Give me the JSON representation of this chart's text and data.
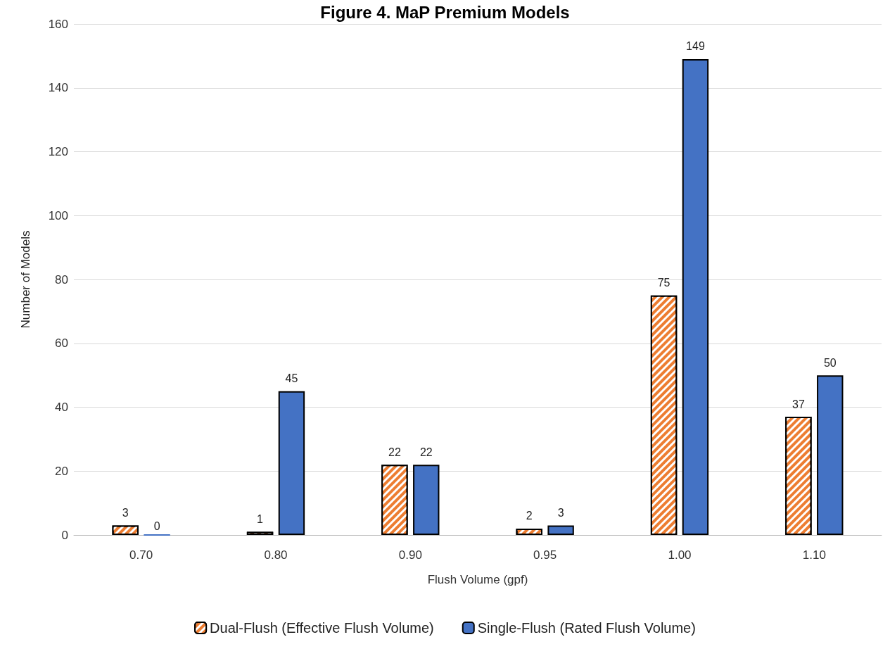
{
  "chart_data": {
    "type": "bar",
    "title": "Figure 4. MaP Premium Models",
    "xlabel": "Flush Volume (gpf)",
    "ylabel": "Number of Models",
    "categories": [
      "0.70",
      "0.80",
      "0.90",
      "0.95",
      "1.00",
      "1.10"
    ],
    "series": [
      {
        "name": "Dual-Flush (Effective Flush Volume)",
        "color": "#ed7d31",
        "values": [
          3,
          1,
          22,
          2,
          75,
          37
        ]
      },
      {
        "name": "Single-Flush (Rated Flush Volume)",
        "color": "#4472c4",
        "values": [
          0,
          45,
          22,
          3,
          149,
          50
        ]
      }
    ],
    "ylim": [
      0,
      160
    ],
    "yticks": [
      0,
      20,
      40,
      60,
      80,
      100,
      120,
      140,
      160
    ],
    "grid": "y",
    "legend": "bottom",
    "data_labels": true
  }
}
